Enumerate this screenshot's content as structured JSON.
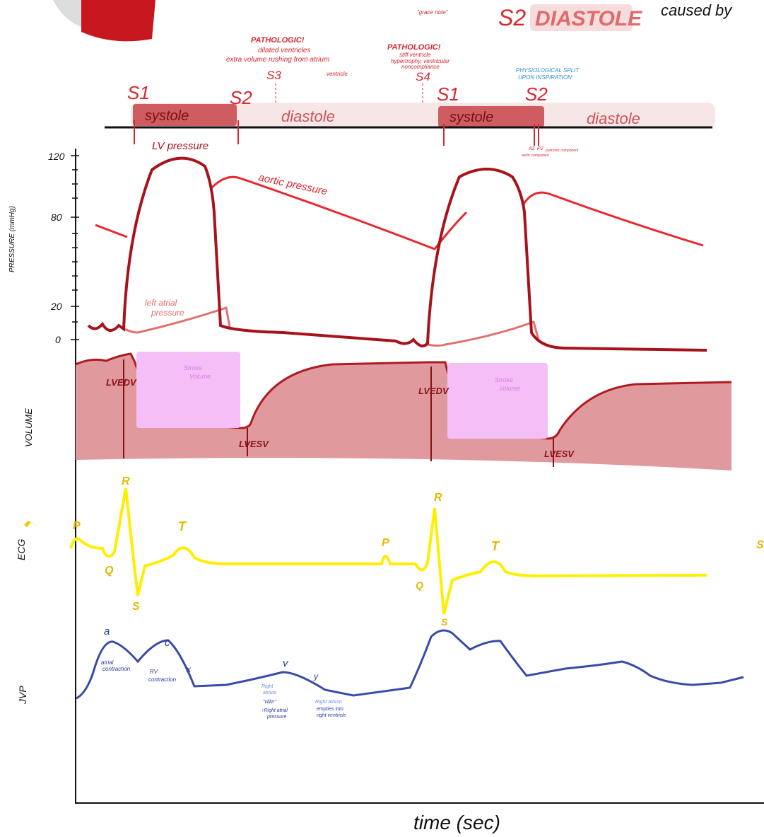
{
  "header": {
    "s2": "S2",
    "diastole_badge": "DIASTOLE",
    "caused_by": "caused by"
  },
  "s3_note": {
    "grace": "\"grace note\"",
    "title": "PATHOLOGIC!",
    "line1": "dilated ventricles",
    "line2": "extra volume rushing from atrium",
    "line3": "ventricle",
    "label": "S3"
  },
  "s4_note": {
    "title": "PATHOLOGIC!",
    "line1": "stiff ventricle",
    "line2": "hypertrophy, ventricular",
    "line3": "noncompliance",
    "label": "S4"
  },
  "split_note": {
    "line1": "PHYSIOLOGICAL SPLIT",
    "line2": "UPON INSPIRATION"
  },
  "timeline": {
    "labels": [
      "S1",
      "systole",
      "S2",
      "diastole",
      "S1",
      "systole",
      "S2",
      "diastole"
    ],
    "a2": "A2",
    "p2": "P2",
    "aortic": "aortic component",
    "pulmonic": "pulmonic component"
  },
  "pressure": {
    "axis_label": "PRESSURE (mmHg)",
    "ticks": [
      "120",
      "80",
      "20",
      "0"
    ],
    "lv": "LV pressure",
    "aortic": "aortic pressure",
    "atrial1": "left atrial",
    "atrial2": "pressure"
  },
  "volume": {
    "axis_label": "VOLUME",
    "labels": [
      "LVEDV",
      "Stroke",
      "Volume",
      "LVESV",
      "LVEDV",
      "Stroke",
      "Volume",
      "LVESV"
    ]
  },
  "ecg": {
    "axis_label": "ECG",
    "labels": [
      "P",
      "Q",
      "R",
      "S",
      "T",
      "P",
      "Q",
      "R",
      "S",
      "T",
      "S"
    ]
  },
  "jvp": {
    "axis_label": "JVP",
    "waves": [
      "a",
      "c",
      "x",
      "v",
      "y"
    ],
    "notes": [
      "atrial",
      "contraction",
      "RV",
      "contraction",
      "Right",
      "atrium",
      "\"villin\"",
      "↑Right atrial",
      "pressure",
      "Right atrium",
      "empties into",
      "right ventricle"
    ]
  },
  "x_axis": {
    "label": "time (sec)"
  }
}
